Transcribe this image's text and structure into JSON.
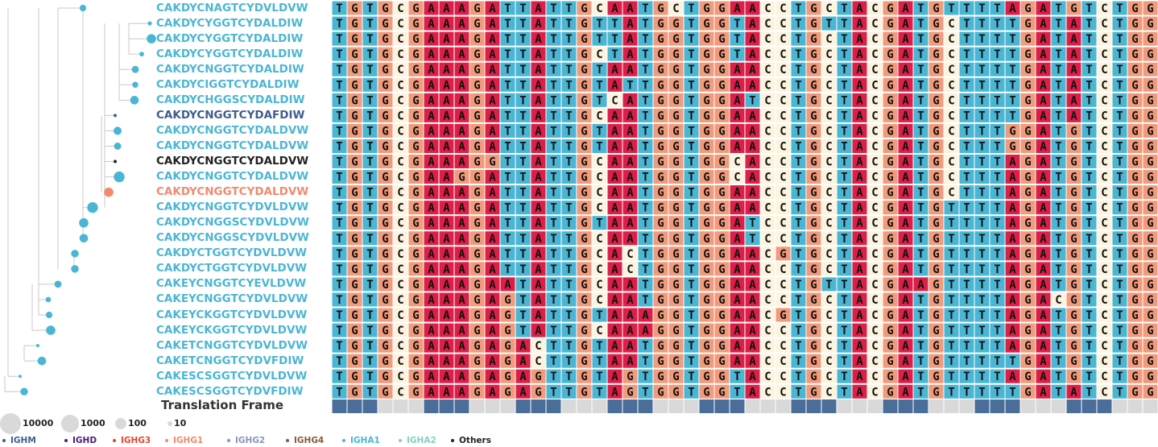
{
  "nucleotide_colors": {
    "T": "#4bb6d4",
    "G": "#f19a7c",
    "C": "#fdf4e0",
    "A": "#dd1f48"
  },
  "isotype_colors": {
    "IGHM": "#3f5d8b",
    "IGHD": "#4b1e78",
    "IGHG3": "#e0462f",
    "IGHG1": "#f08a6e",
    "IGHG2": "#8896b8",
    "IGHG4": "#8a5a3c",
    "IGHA1": "#4bb6d4",
    "IGHA2": "#84d0c3",
    "Others": "#222222"
  },
  "rows": [
    {
      "cdr3": "CAKDYCNAGTCYDVLDVW",
      "isotype": "IGHA1",
      "size": 30,
      "seq": "TGTGCGAAAGATTATTGCAATGCTGGAACCTGCTACGATGTTTTAGATGTCTGG"
    },
    {
      "cdr3": "CAKDYCYGGTCYDALDIW",
      "isotype": "IGHA1",
      "size": 12,
      "seq": "TGTGCGAAAGATTATTGTTATGGTGGTACCTGTTACGATGCTTTTGATATCTGG"
    },
    {
      "cdr3": "CAKDYCYGGTCYDALDIW",
      "isotype": "IGHA1",
      "size": 60,
      "seq": "TGTGCGAAAGATTATTGTTATGGTGGTACCTGCTACGATGCTTTTGATATCTGG"
    },
    {
      "cdr3": "CAKDYCYGGTCYDALDIW",
      "isotype": "IGHA1",
      "size": 15,
      "seq": "TGTGCGAAAGATTATTGCTATGGTGGTACCTGCTACGATGCTTTTGATATCTGG"
    },
    {
      "cdr3": "CAKDYCNGGTCYDALDIW",
      "isotype": "IGHA1",
      "size": 35,
      "seq": "TGTGCGAAAGATTATTGTAATGGTGGAACCTGCTACGATGCTTTTGATATCTGG"
    },
    {
      "cdr3": "CAKDYCIGGTCYDALDIW",
      "isotype": "IGHA1",
      "size": 25,
      "seq": "TGTGCGAAAGATTATTGTATTGGTGGAACCTGCTACGATGCTTTTGATATCTGG"
    },
    {
      "cdr3": "CAKDYCHGGSCYDALDIW",
      "isotype": "IGHA1",
      "size": 50,
      "seq": "TGTGCGAAAGATTATTGTCATGGTGGATCCTGCTACGATGCTTTTGATATCTGG"
    },
    {
      "cdr3": "CAKDYCNGGTCYDAFDIW",
      "isotype": "IGHM",
      "size": 4,
      "seq": "TGTGCGAAAGATTATTGCAATGGTGGAACCTGCTACGATGCTTTTGATATCTGG"
    },
    {
      "cdr3": "CAKDYCNGGTCYDALDVW",
      "isotype": "IGHA1",
      "size": 45,
      "seq": "TGTGCGAAAGATTATTGTAATGGTGGAACCTGCTACGATGCTTTGGATGTCTGG"
    },
    {
      "cdr3": "CAKDYCNGGTCYDALDVW",
      "isotype": "IGHA1",
      "size": 35,
      "seq": "TGTGCGAAAGATTATTGTAATGGTGGAACCTGCTACGATGCTTTGGATGTCTGG"
    },
    {
      "cdr3": "CAKDYCNGGTCYDALDVW",
      "isotype": "Others",
      "size": 4,
      "seq": "TGTGCGAAAGGTTATTGCAATGGTGGCACCTGCTACGATGCTTTAGATGTCTGG"
    },
    {
      "cdr3": "CAKDYCNGGTCYDALDVW",
      "isotype": "IGHA1",
      "size": 80,
      "seq": "TGTGCGAAGGATTATTGCAATGGTGGCACCTGCTACGATGCTTTAGATGTCTGG"
    },
    {
      "cdr3": "CAKDYCNGGTCYDALDVW",
      "isotype": "IGHG1",
      "size": 60,
      "seq": "TGTGCGAAAGATTATTGCAATGGTGGAACCTGCTACGATGCTTTAGATGTCTGG"
    },
    {
      "cdr3": "CAKDYCNGGTCYDVLDVW",
      "isotype": "IGHA1",
      "size": 80,
      "seq": "TGTGCGAAAGATTATTGCAATGGTGGAACCTGCTACGATGTTTTAGATGTCTGG"
    },
    {
      "cdr3": "CAKDYCNGGSCYDVLDVW",
      "isotype": "IGHA1",
      "size": 60,
      "seq": "TGTGCGAAAGATTATTGTAATGGTGGATCCTGCTACGATGTTTTAGATGTCTGG"
    },
    {
      "cdr3": "CAKDYCNGGSCYDVLDVW",
      "isotype": "IGHA1",
      "size": 50,
      "seq": "TGTGCGAAAGATTATTGCAATGGTGGATCCTGCTACGATGTTTTAGATGTCTGG"
    },
    {
      "cdr3": "CAKDYCTGGTCYDVLDVW",
      "isotype": "IGHA1",
      "size": 40,
      "seq": "TGTGCGAAAGATTATTGCACTGGTGGAACGTGCTACGATGTTTTAGATGTCTGG"
    },
    {
      "cdr3": "CAKDYCTGGTCYDVLDVW",
      "isotype": "IGHA1",
      "size": 40,
      "seq": "TGTGCGAAAGATTATTGCACTGGTGGAACCTGCTACGATGTTTTAGATGTCTGG"
    },
    {
      "cdr3": "CAKEYCNGGTCYEVLDVW",
      "isotype": "IGHA1",
      "size": 35,
      "seq": "TGTGCGAAAGAATATTGCAATGGTGGAACCTGTTACGAAGTTTTAGATGTCTGG"
    },
    {
      "cdr3": "CAKEYCNGGTCYDVLDVW",
      "isotype": "IGHA1",
      "size": 20,
      "seq": "TGTGCGAAAGAGTATTGCAATGGTGGAACCTGCTACGATGTTTTAGACGTCTGG"
    },
    {
      "cdr3": "CAKEYCKGGTCYDVLDVW",
      "isotype": "IGHA1",
      "size": 30,
      "seq": "TGTGCGAAAGAGTATTGTAAAGGTGGAACGTGCTACGATGTTTTAGATGTCTGG"
    },
    {
      "cdr3": "CAKEYCKGGTCYDVLDVW",
      "isotype": "IGHA1",
      "size": 60,
      "seq": "TGTGCGAAAGAGTATTGCAAAGGTGGAACCTGCTACGATGTTTTAGATGTCTGG"
    },
    {
      "cdr3": "CAKETCNGGTCYDVLDVW",
      "isotype": "IGHA1",
      "size": 6,
      "seq": "TGTGCGAAAGAGACTTGTAATGGTGGAACCTGCTACGATGTTTTAGATGTCTGG"
    },
    {
      "cdr3": "CAKETCNGGTCYDVFDIW",
      "isotype": "IGHA1",
      "size": 50,
      "seq": "TGTGCGAAAGAGACTTGTAATGGTGGAACCTGCTACGATGTTTTTGATGTCTGG"
    },
    {
      "cdr3": "CAKESCSGGTCYDVLDVW",
      "isotype": "IGHA1",
      "size": 3,
      "seq": "TGTGCGAAAGAGAGTTGTAGTGGTGGTACCTGCTACGATGTTTTAGATGTCTGG"
    },
    {
      "cdr3": "CAKESCSGGTCYDVFDIW",
      "isotype": "IGHA1",
      "size": 40,
      "seq": "TGTGCGAAAGAGAGTTGTAGTGGTGGTACCTGCTACGATGTTTTTGATATCTGG"
    }
  ],
  "translation_frame": {
    "label": "Translation Frame",
    "codon_colors": [
      "#4a6d9a",
      "#d9d9d9"
    ]
  },
  "size_legend": [
    {
      "value": 10000,
      "label": "10000"
    },
    {
      "value": 1000,
      "label": "1000"
    },
    {
      "value": 100,
      "label": "100"
    },
    {
      "value": 10,
      "label": "10"
    }
  ],
  "isotype_legend": [
    {
      "name": "IGHM",
      "color": "#3f5d8b"
    },
    {
      "name": "IGHD",
      "color": "#4b1e78"
    },
    {
      "name": "IGHG3",
      "color": "#e0462f"
    },
    {
      "name": "IGHG1",
      "color": "#f08a6e"
    },
    {
      "name": "IGHG2",
      "color": "#8896b8"
    },
    {
      "name": "IGHG4",
      "color": "#8a5a3c"
    },
    {
      "name": "IGHA1",
      "color": "#4bb6d4"
    },
    {
      "name": "IGHA2",
      "color": "#84d0c3"
    },
    {
      "name": "Others",
      "color": "#222222"
    }
  ]
}
